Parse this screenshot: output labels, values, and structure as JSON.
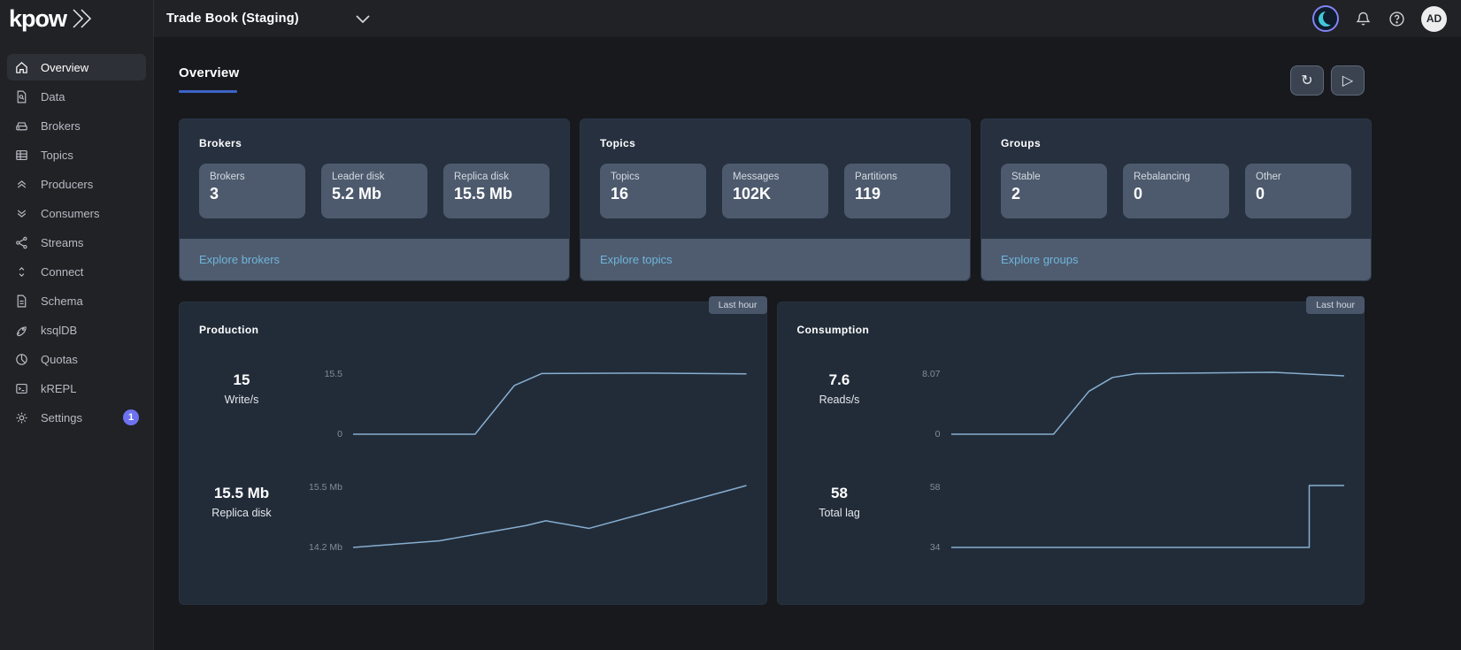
{
  "topbar": {
    "logo_text": "kpow",
    "environment": "Trade Book (Staging)",
    "avatar_initials": "AD"
  },
  "sidebar": {
    "items": [
      {
        "label": "Overview",
        "icon": "home-icon",
        "active": true
      },
      {
        "label": "Data",
        "icon": "data-search-icon"
      },
      {
        "label": "Brokers",
        "icon": "drive-icon"
      },
      {
        "label": "Topics",
        "icon": "table-icon"
      },
      {
        "label": "Producers",
        "icon": "double-chevron-up-icon"
      },
      {
        "label": "Consumers",
        "icon": "double-chevron-down-icon"
      },
      {
        "label": "Streams",
        "icon": "share-icon"
      },
      {
        "label": "Connect",
        "icon": "up-down-chevron-icon"
      },
      {
        "label": "Schema",
        "icon": "document-icon"
      },
      {
        "label": "ksqlDB",
        "icon": "rocket-icon"
      },
      {
        "label": "Quotas",
        "icon": "pie-icon"
      },
      {
        "label": "kREPL",
        "icon": "terminal-icon"
      },
      {
        "label": "Settings",
        "icon": "gear-icon",
        "badge": "1"
      }
    ]
  },
  "main": {
    "page_title": "Overview",
    "summary_cards": [
      {
        "title": "Brokers",
        "stats": [
          {
            "label": "Brokers",
            "value": "3"
          },
          {
            "label": "Leader disk",
            "value": "5.2 Mb"
          },
          {
            "label": "Replica disk",
            "value": "15.5 Mb"
          }
        ],
        "link": "Explore brokers"
      },
      {
        "title": "Topics",
        "stats": [
          {
            "label": "Topics",
            "value": "16"
          },
          {
            "label": "Messages",
            "value": "102K"
          },
          {
            "label": "Partitions",
            "value": "119"
          }
        ],
        "link": "Explore topics"
      },
      {
        "title": "Groups",
        "stats": [
          {
            "label": "Stable",
            "value": "2"
          },
          {
            "label": "Rebalancing",
            "value": "0"
          },
          {
            "label": "Other",
            "value": "0"
          }
        ],
        "link": "Explore groups"
      }
    ],
    "chart_cards": [
      {
        "title": "Production",
        "badge": "Last hour"
      },
      {
        "title": "Consumption",
        "badge": "Last hour"
      }
    ]
  },
  "chart_data": [
    {
      "type": "line",
      "card": "Production",
      "name": "Write/s",
      "current_label": "15",
      "y_tick_top": "15.5",
      "y_tick_bottom": "0",
      "ymin": 0,
      "ymax": 15.5,
      "x_range": "Last hour",
      "points": [
        [
          0,
          0
        ],
        [
          31,
          0
        ],
        [
          41,
          12.2
        ],
        [
          48,
          15.2
        ],
        [
          75,
          15.3
        ],
        [
          100,
          15.1
        ]
      ]
    },
    {
      "type": "line",
      "card": "Production",
      "name": "Replica disk",
      "current_label": "15.5 Mb",
      "y_tick_top": "15.5 Mb",
      "y_tick_bottom": "14.2 Mb",
      "ymin": 14.2,
      "ymax": 15.5,
      "x_range": "Last hour",
      "points": [
        [
          0,
          14.2
        ],
        [
          22,
          14.34
        ],
        [
          44,
          14.66
        ],
        [
          49,
          14.76
        ],
        [
          60,
          14.6
        ],
        [
          100,
          15.5
        ]
      ]
    },
    {
      "type": "line",
      "card": "Consumption",
      "name": "Reads/s",
      "current_label": "7.6",
      "y_tick_top": "8.07",
      "y_tick_bottom": "0",
      "ymin": 0,
      "ymax": 8.07,
      "x_range": "Last hour",
      "points": [
        [
          0,
          0
        ],
        [
          26,
          0
        ],
        [
          35,
          5.6
        ],
        [
          41,
          7.4
        ],
        [
          47,
          7.9
        ],
        [
          82,
          8.07
        ],
        [
          100,
          7.6
        ]
      ]
    },
    {
      "type": "line",
      "card": "Consumption",
      "name": "Total lag",
      "current_label": "58",
      "y_tick_top": "58",
      "y_tick_bottom": "34",
      "ymin": 34,
      "ymax": 58,
      "x_range": "Last hour",
      "points": [
        [
          0,
          34
        ],
        [
          91,
          34
        ],
        [
          91,
          58
        ],
        [
          100,
          58
        ]
      ]
    }
  ],
  "theme": {
    "accent_blue": "#3d63c6",
    "link_blue": "#6fb5dc",
    "spark_line": "#87aed0",
    "badge_indigo": "#6d72f0",
    "moon_teal": "#41c8da",
    "toggle_ring": "#8184f3"
  }
}
